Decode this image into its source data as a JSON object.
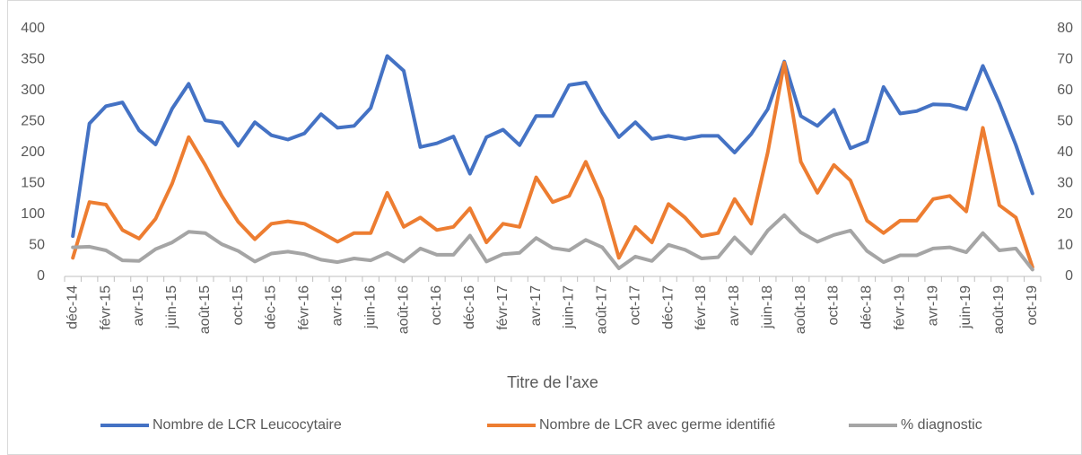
{
  "chart_data": {
    "type": "line",
    "x_label": "Titre de l'axe",
    "categories": [
      "déc-14",
      null,
      "févr-15",
      null,
      "avr-15",
      null,
      "juin-15",
      null,
      "août-15",
      null,
      "oct-15",
      null,
      "déc-15",
      null,
      "févr-16",
      null,
      "avr-16",
      null,
      "juin-16",
      null,
      "août-16",
      null,
      "oct-16",
      null,
      "déc-16",
      null,
      "févr-17",
      null,
      "avr-17",
      null,
      "juin-17",
      null,
      "août-17",
      null,
      "oct-17",
      null,
      "déc-17",
      null,
      "févr-18",
      null,
      "avr-18",
      null,
      "juin-18",
      null,
      "août-18",
      null,
      "oct-18",
      null,
      "déc-18",
      null,
      "févr-19",
      null,
      "avr-19",
      null,
      "juin-19",
      null,
      "août-19",
      null,
      "oct-19"
    ],
    "series": [
      {
        "name": "Nombre de LCR Leucocytaire",
        "color": "#4472c4",
        "values": [
          65,
          247,
          275,
          281,
          236,
          213,
          271,
          311,
          252,
          248,
          211,
          249,
          228,
          221,
          231,
          262,
          240,
          243,
          272,
          356,
          332,
          209,
          215,
          226,
          166,
          225,
          237,
          212,
          259,
          259,
          309,
          313,
          265,
          225,
          249,
          222,
          227,
          222,
          227,
          227,
          200,
          230,
          270,
          347,
          259,
          243,
          269,
          207,
          218,
          306,
          263,
          267,
          278,
          277,
          270,
          340,
          280,
          212,
          134
        ]
      },
      {
        "name": "Nombre de LCR avec germe identifié",
        "color": "#ed7d31",
        "values": [
          30,
          120,
          116,
          75,
          61,
          93,
          150,
          225,
          180,
          130,
          88,
          60,
          85,
          89,
          85,
          71,
          56,
          70,
          70,
          135,
          80,
          95,
          75,
          80,
          110,
          55,
          85,
          80,
          160,
          120,
          130,
          185,
          125,
          30,
          80,
          55,
          117,
          95,
          65,
          70,
          125,
          85,
          200,
          345,
          185,
          135,
          180,
          155,
          90,
          70,
          90,
          90,
          125,
          130,
          105,
          240,
          115,
          95,
          15
        ]
      },
      {
        "name": "% diagnostic",
        "color": "#a5a5a5",
        "values": [
          47,
          48,
          42,
          26,
          25,
          44,
          55,
          72,
          70,
          52,
          41,
          24,
          37,
          40,
          36,
          27,
          23,
          29,
          26,
          38,
          24,
          45,
          35,
          35,
          66,
          24,
          36,
          38,
          62,
          46,
          42,
          59,
          47,
          13,
          32,
          25,
          51,
          43,
          29,
          31,
          63,
          37,
          74,
          99,
          71,
          56,
          67,
          74,
          41,
          23,
          34,
          34,
          45,
          47,
          39,
          70,
          42,
          45,
          11
        ]
      }
    ],
    "ylim": [
      0,
      400
    ],
    "yticks": [
      0,
      50,
      100,
      150,
      200,
      250,
      300,
      350,
      400
    ],
    "y2lim": [
      0,
      80
    ],
    "y2ticks": [
      0,
      10,
      20,
      30,
      40,
      50,
      60,
      70,
      80
    ],
    "legend": "bottom",
    "grid": false
  }
}
